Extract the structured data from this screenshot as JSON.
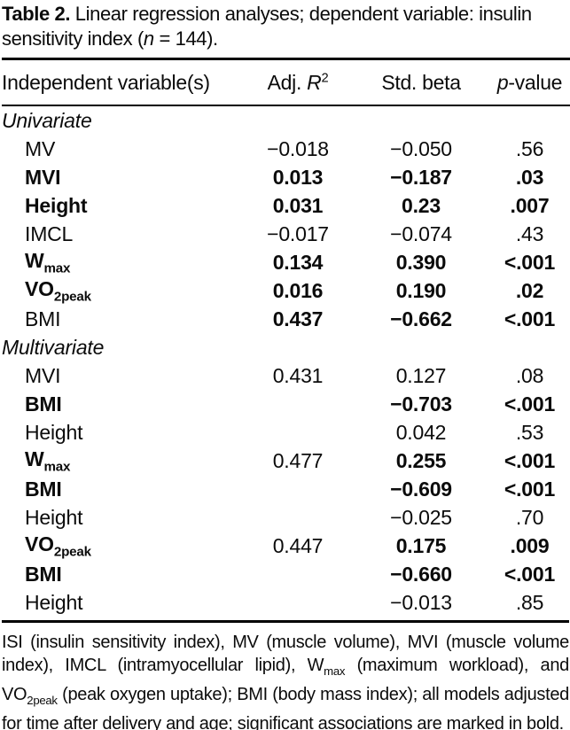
{
  "colors": {
    "text": "#000000",
    "background": "#ffffff"
  },
  "title": {
    "label": "Table 2.",
    "text": " Linear regression analyses; dependent variable: insulin sensitivity index (",
    "n_italic": "n",
    "tail": " = 144)."
  },
  "table": {
    "header": {
      "col1": "Independent variable(s)",
      "col2_prefix": "Adj. ",
      "col2_var": "R",
      "col2_sup": "2",
      "col3": "Std. beta",
      "col4_italic": "p",
      "col4_rest": "-value"
    },
    "rows": [
      {
        "type": "section",
        "label": "Univariate"
      },
      {
        "type": "data",
        "label": "MV",
        "label_sub": "",
        "label_bold": false,
        "r2": "−0.018",
        "r2_bold": false,
        "beta": "−0.050",
        "beta_bold": false,
        "p": ".56",
        "p_bold": false
      },
      {
        "type": "data",
        "label": "MVI",
        "label_sub": "",
        "label_bold": true,
        "r2": "0.013",
        "r2_bold": true,
        "beta": "−0.187",
        "beta_bold": true,
        "p": ".03",
        "p_bold": true
      },
      {
        "type": "data",
        "label": "Height",
        "label_sub": "",
        "label_bold": true,
        "r2": "0.031",
        "r2_bold": true,
        "beta": "0.23",
        "beta_bold": true,
        "p": ".007",
        "p_bold": true
      },
      {
        "type": "data",
        "label": "IMCL",
        "label_sub": "",
        "label_bold": false,
        "r2": "−0.017",
        "r2_bold": false,
        "beta": "−0.074",
        "beta_bold": false,
        "p": ".43",
        "p_bold": false
      },
      {
        "type": "data",
        "label": "W",
        "label_sub": "max",
        "label_bold": true,
        "r2": "0.134",
        "r2_bold": true,
        "beta": "0.390",
        "beta_bold": true,
        "p": "<.001",
        "p_bold": true
      },
      {
        "type": "data",
        "label": "VO",
        "label_sub": "2peak",
        "label_bold": true,
        "r2": "0.016",
        "r2_bold": true,
        "beta": "0.190",
        "beta_bold": true,
        "p": ".02",
        "p_bold": true
      },
      {
        "type": "data",
        "label": "BMI",
        "label_sub": "",
        "label_bold": false,
        "r2": "0.437",
        "r2_bold": true,
        "beta": "−0.662",
        "beta_bold": true,
        "p": "<.001",
        "p_bold": true
      },
      {
        "type": "section",
        "label": "Multivariate"
      },
      {
        "type": "data",
        "label": "MVI",
        "label_sub": "",
        "label_bold": false,
        "r2": "0.431",
        "r2_bold": false,
        "beta": "0.127",
        "beta_bold": false,
        "p": ".08",
        "p_bold": false
      },
      {
        "type": "data",
        "label": "BMI",
        "label_sub": "",
        "label_bold": true,
        "r2": "",
        "r2_bold": false,
        "beta": "−0.703",
        "beta_bold": true,
        "p": "<.001",
        "p_bold": true
      },
      {
        "type": "data",
        "label": "Height",
        "label_sub": "",
        "label_bold": false,
        "r2": "",
        "r2_bold": false,
        "beta": "0.042",
        "beta_bold": false,
        "p": ".53",
        "p_bold": false
      },
      {
        "type": "data",
        "label": "W",
        "label_sub": "max",
        "label_bold": true,
        "r2": "0.477",
        "r2_bold": false,
        "beta": "0.255",
        "beta_bold": true,
        "p": "<.001",
        "p_bold": true
      },
      {
        "type": "data",
        "label": "BMI",
        "label_sub": "",
        "label_bold": true,
        "r2": "",
        "r2_bold": false,
        "beta": "−0.609",
        "beta_bold": true,
        "p": "<.001",
        "p_bold": true
      },
      {
        "type": "data",
        "label": "Height",
        "label_sub": "",
        "label_bold": false,
        "r2": "",
        "r2_bold": false,
        "beta": "−0.025",
        "beta_bold": false,
        "p": ".70",
        "p_bold": false
      },
      {
        "type": "data",
        "label": "VO",
        "label_sub": "2peak",
        "label_bold": true,
        "r2": "0.447",
        "r2_bold": false,
        "beta": "0.175",
        "beta_bold": true,
        "p": ".009",
        "p_bold": true
      },
      {
        "type": "data",
        "label": "BMI",
        "label_sub": "",
        "label_bold": true,
        "r2": "",
        "r2_bold": false,
        "beta": "−0.660",
        "beta_bold": true,
        "p": "<.001",
        "p_bold": true
      },
      {
        "type": "data",
        "label": "Height",
        "label_sub": "",
        "label_bold": false,
        "r2": "",
        "r2_bold": false,
        "beta": "−0.013",
        "beta_bold": false,
        "p": ".85",
        "p_bold": false
      }
    ]
  },
  "footnote": {
    "parts": [
      {
        "text": "ISI (insulin sensitivity index), MV (muscle volume), MVI (muscle volume index), IMCL (intramyocellular lipid), W"
      },
      {
        "sub": "max"
      },
      {
        "text": " (maximum workload), and VO"
      },
      {
        "sub": "2peak"
      },
      {
        "text": " (peak oxygen uptake); BMI (body mass index); all models adjusted for time after delivery and age; significant associations are marked in bold."
      }
    ]
  }
}
